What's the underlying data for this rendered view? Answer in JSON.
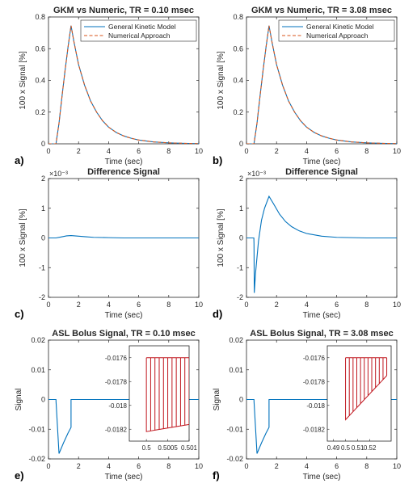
{
  "colors": {
    "blue": "#0072BD",
    "orange": "#D95319",
    "red": "#C0161E",
    "axis": "#262626"
  },
  "chart_data": [
    {
      "id": "a",
      "type": "line",
      "panel_label": "a)",
      "title": "GKM vs Numeric, TR = 0.10 msec",
      "xlabel": "Time (sec)",
      "ylabel": "100 x Signal [%]",
      "xlim": [
        0,
        10
      ],
      "ylim": [
        0,
        0.8
      ],
      "xticks": [
        0,
        2,
        4,
        6,
        8,
        10
      ],
      "yticks": [
        0,
        0.2,
        0.4,
        0.6,
        0.8
      ],
      "ytick_labels": [
        "0",
        "0.2",
        "0.4",
        "0.6",
        "0.8"
      ],
      "legend": [
        "General Kinetic Model",
        "Numerical Approach"
      ],
      "legend_position": "top-right",
      "series": [
        {
          "name": "General Kinetic Model",
          "color": "#0072BD",
          "style": "solid",
          "x": [
            0,
            0.49,
            0.5,
            0.7,
            0.9,
            1.1,
            1.3,
            1.5,
            1.7,
            2.0,
            2.4,
            2.8,
            3.2,
            3.6,
            4.0,
            4.5,
            5.0,
            5.5,
            6.0,
            7.0,
            8.0,
            9.0,
            10.0
          ],
          "y": [
            0,
            0,
            0,
            0.13,
            0.3,
            0.46,
            0.61,
            0.745,
            0.64,
            0.5,
            0.37,
            0.27,
            0.2,
            0.145,
            0.105,
            0.072,
            0.05,
            0.035,
            0.024,
            0.012,
            0.006,
            0.003,
            0.001
          ]
        },
        {
          "name": "Numerical Approach",
          "color": "#D95319",
          "style": "dashed",
          "x": [
            0,
            0.49,
            0.5,
            0.7,
            0.9,
            1.1,
            1.3,
            1.5,
            1.7,
            2.0,
            2.4,
            2.8,
            3.2,
            3.6,
            4.0,
            4.5,
            5.0,
            5.5,
            6.0,
            7.0,
            8.0,
            9.0,
            10.0
          ],
          "y": [
            0,
            0,
            0,
            0.13,
            0.3,
            0.46,
            0.61,
            0.745,
            0.64,
            0.5,
            0.37,
            0.27,
            0.2,
            0.145,
            0.105,
            0.072,
            0.05,
            0.035,
            0.024,
            0.012,
            0.006,
            0.003,
            0.001
          ]
        }
      ]
    },
    {
      "id": "b",
      "type": "line",
      "panel_label": "b)",
      "title": "GKM vs Numeric, TR = 3.08 msec",
      "xlabel": "Time (sec)",
      "ylabel": "100 x Signal [%]",
      "xlim": [
        0,
        10
      ],
      "ylim": [
        0,
        0.8
      ],
      "xticks": [
        0,
        2,
        4,
        6,
        8,
        10
      ],
      "yticks": [
        0,
        0.2,
        0.4,
        0.6,
        0.8
      ],
      "ytick_labels": [
        "0",
        "0.2",
        "0.4",
        "0.6",
        "0.8"
      ],
      "legend": [
        "General Kinetic Model",
        "Numerical Approach"
      ],
      "legend_position": "top-right",
      "series": [
        {
          "name": "General Kinetic Model",
          "color": "#0072BD",
          "style": "solid",
          "x": [
            0,
            0.49,
            0.5,
            0.7,
            0.9,
            1.1,
            1.3,
            1.5,
            1.7,
            2.0,
            2.4,
            2.8,
            3.2,
            3.6,
            4.0,
            4.5,
            5.0,
            5.5,
            6.0,
            7.0,
            8.0,
            9.0,
            10.0
          ],
          "y": [
            0,
            0,
            0,
            0.13,
            0.3,
            0.46,
            0.61,
            0.745,
            0.64,
            0.5,
            0.37,
            0.27,
            0.2,
            0.145,
            0.105,
            0.072,
            0.05,
            0.035,
            0.024,
            0.012,
            0.006,
            0.003,
            0.001
          ]
        },
        {
          "name": "Numerical Approach",
          "color": "#D95319",
          "style": "dashed",
          "x": [
            0,
            0.49,
            0.5,
            0.7,
            0.9,
            1.1,
            1.3,
            1.5,
            1.7,
            2.0,
            2.4,
            2.8,
            3.2,
            3.6,
            4.0,
            4.5,
            5.0,
            5.5,
            6.0,
            7.0,
            8.0,
            9.0,
            10.0
          ],
          "y": [
            0,
            0,
            0,
            0.13,
            0.3,
            0.46,
            0.61,
            0.745,
            0.64,
            0.5,
            0.37,
            0.27,
            0.2,
            0.145,
            0.105,
            0.072,
            0.05,
            0.035,
            0.024,
            0.012,
            0.006,
            0.003,
            0.001
          ]
        }
      ]
    },
    {
      "id": "c",
      "type": "line",
      "panel_label": "c)",
      "title": "Difference Signal",
      "exponent_label": "×10⁻³",
      "xlabel": "Time (sec)",
      "ylabel": "100 x Signal [%]",
      "xlim": [
        0,
        10
      ],
      "ylim": [
        -0.002,
        0.002
      ],
      "xticks": [
        0,
        2,
        4,
        6,
        8,
        10
      ],
      "yticks": [
        -0.002,
        -0.001,
        0,
        0.001,
        0.002
      ],
      "ytick_labels": [
        "-2",
        "-1",
        "0",
        "1",
        "2"
      ],
      "series": [
        {
          "color": "#0072BD",
          "x": [
            0,
            0.5,
            0.8,
            1.2,
            1.5,
            2.0,
            2.5,
            3.0,
            4.0,
            5.0,
            6.0,
            10.0
          ],
          "y": [
            0,
            0,
            3e-05,
            7e-05,
            8e-05,
            6e-05,
            4e-05,
            2e-05,
            1e-05,
            0,
            0,
            0
          ]
        }
      ]
    },
    {
      "id": "d",
      "type": "line",
      "panel_label": "d)",
      "title": "Difference Signal",
      "exponent_label": "×10⁻³",
      "xlabel": "Time (sec)",
      "ylabel": "100 x Signal [%]",
      "xlim": [
        0,
        10
      ],
      "ylim": [
        -0.002,
        0.002
      ],
      "xticks": [
        0,
        2,
        4,
        6,
        8,
        10
      ],
      "yticks": [
        -0.002,
        -0.001,
        0,
        0.001,
        0.002
      ],
      "ytick_labels": [
        "-2",
        "-1",
        "0",
        "1",
        "2"
      ],
      "series": [
        {
          "color": "#0072BD",
          "x": [
            0,
            0.49,
            0.5,
            0.52,
            0.6,
            0.8,
            1.0,
            1.2,
            1.5,
            1.8,
            2.2,
            2.6,
            3.0,
            3.5,
            4.0,
            5.0,
            6.0,
            7.0,
            8.0,
            10.0
          ],
          "y": [
            0,
            0,
            -0.0002,
            -0.00185,
            -0.0012,
            -0.0001,
            0.0006,
            0.001,
            0.0014,
            0.00115,
            0.0008,
            0.00055,
            0.00038,
            0.00024,
            0.00015,
            6e-05,
            2e-05,
            1e-05,
            0,
            0
          ]
        }
      ]
    },
    {
      "id": "e",
      "type": "line",
      "panel_label": "e)",
      "title": "ASL Bolus Signal, TR = 0.10 msec",
      "xlabel": "Time (sec)",
      "ylabel": "Signal",
      "xlim": [
        0,
        10
      ],
      "ylim": [
        -0.02,
        0.02
      ],
      "xticks": [
        0,
        2,
        4,
        6,
        8,
        10
      ],
      "yticks": [
        -0.02,
        -0.01,
        0,
        0.01,
        0.02
      ],
      "ytick_labels": [
        "-0.02",
        "-0.01",
        "0",
        "0.01",
        "0.02"
      ],
      "series": [
        {
          "color": "#0072BD",
          "x": [
            0,
            0.5,
            0.5,
            0.7,
            1.0,
            1.3,
            1.5,
            1.5,
            10
          ],
          "y": [
            0,
            0,
            -0.0005,
            -0.0182,
            -0.0146,
            -0.0113,
            -0.0094,
            0,
            0
          ]
        }
      ],
      "inset": {
        "type": "line",
        "xlim": [
          0.4996,
          0.501
        ],
        "ylim": [
          -0.0183,
          -0.0175
        ],
        "xticks": [
          0.5,
          0.5005,
          0.501
        ],
        "xtick_labels": [
          "0.5",
          "0.5005",
          "0.501"
        ],
        "yticks": [
          -0.0176,
          -0.0178,
          -0.018,
          -0.0182
        ],
        "ytick_labels": [
          "-0.0176",
          "-0.0178",
          "-0.018",
          "-0.0182"
        ],
        "pulses": {
          "color": "#C0161E",
          "top": -0.0176,
          "x_start": 0.5,
          "x_end": 0.501,
          "count": 11,
          "y_first": -0.01822,
          "y_last": -0.01816
        }
      }
    },
    {
      "id": "f",
      "type": "line",
      "panel_label": "f)",
      "title": "ASL Bolus Signal, TR = 3.08 msec",
      "xlabel": "Time (sec)",
      "ylabel": "Signal",
      "xlim": [
        0,
        10
      ],
      "ylim": [
        -0.02,
        0.02
      ],
      "xticks": [
        0,
        2,
        4,
        6,
        8,
        10
      ],
      "yticks": [
        -0.02,
        -0.01,
        0,
        0.01,
        0.02
      ],
      "ytick_labels": [
        "-0.02",
        "-0.01",
        "0",
        "0.01",
        "0.02"
      ],
      "series": [
        {
          "color": "#0072BD",
          "x": [
            0,
            0.5,
            0.5,
            0.7,
            1.0,
            1.3,
            1.5,
            1.5,
            10
          ],
          "y": [
            0,
            0,
            -0.0005,
            -0.0182,
            -0.0146,
            -0.0113,
            -0.0094,
            0,
            0
          ]
        }
      ],
      "inset": {
        "type": "line",
        "xlim": [
          0.485,
          0.5375
        ],
        "ylim": [
          -0.0183,
          -0.0175
        ],
        "xticks": [
          0.49,
          0.5,
          0.51,
          0.52
        ],
        "xtick_labels": [
          "0.49",
          "0.5",
          "0.51",
          "0.52"
        ],
        "yticks": [
          -0.0176,
          -0.0178,
          -0.018,
          -0.0182
        ],
        "ytick_labels": [
          "-0.0176",
          "-0.0178",
          "-0.018",
          "-0.0182"
        ],
        "pulses": {
          "color": "#C0161E",
          "top": -0.0176,
          "x_start": 0.5,
          "x_end": 0.5339,
          "count": 12,
          "y_first": -0.01812,
          "y_last": -0.01775
        }
      }
    }
  ]
}
